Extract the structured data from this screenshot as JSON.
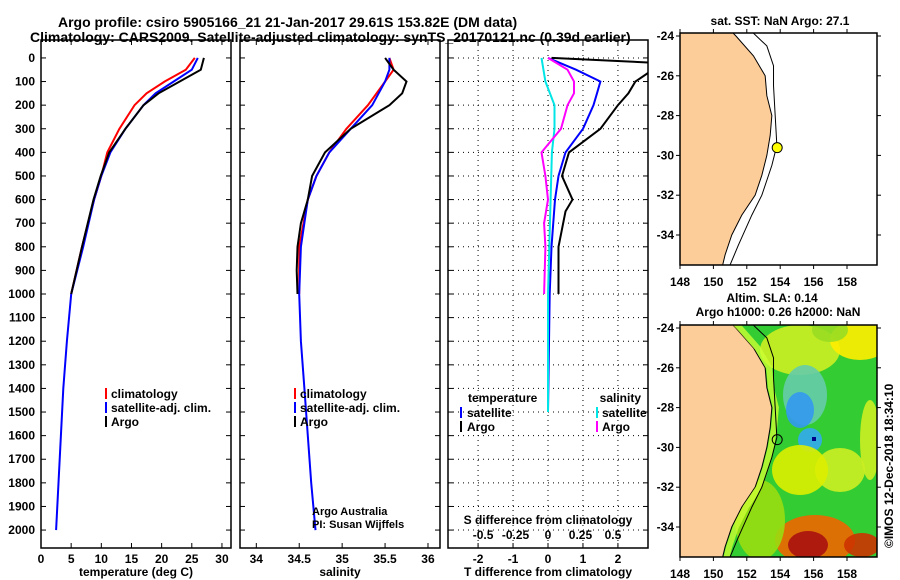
{
  "titles": {
    "line1": "Argo profile: csiro 5905166_21 21-Jan-2017 29.61S 153.82E (DM data)",
    "line2": "Climatology: CARS2009. Satellite-adjusted climatology: synTS_20170121.nc (0.39d earlier)"
  },
  "colors": {
    "clim": "#ff0000",
    "sat": "#0000ff",
    "argo": "#000000",
    "sat_s": "#00e5e5",
    "argo_s": "#ff00ff",
    "land": "#fccc99",
    "argo_dot": "#ffff00"
  },
  "chart_data": [
    {
      "type": "line",
      "name": "temperature",
      "xlabel": "temperature (deg C)",
      "xlim": [
        0,
        31.5
      ],
      "ylim": [
        -76,
        2076
      ],
      "xticks": [
        0,
        5,
        10,
        15,
        20,
        25,
        30
      ],
      "yticks": [
        0,
        100,
        200,
        300,
        400,
        500,
        600,
        700,
        800,
        900,
        1000,
        1100,
        1200,
        1300,
        1400,
        1500,
        1600,
        1700,
        1800,
        1900,
        2000
      ],
      "legend": [
        "climatology",
        "satellite-adj. clim.",
        "Argo"
      ],
      "series": [
        {
          "name": "climatology",
          "color": "#ff0000",
          "depth": [
            0,
            50,
            100,
            150,
            200,
            300,
            400,
            500,
            600,
            800,
            1000
          ],
          "values": [
            25.5,
            24,
            20.5,
            17.5,
            15.5,
            13,
            11,
            10,
            8.8,
            6.8,
            5
          ]
        },
        {
          "name": "satellite-adj. clim.",
          "color": "#0000ff",
          "depth": [
            0,
            50,
            100,
            150,
            200,
            300,
            400,
            500,
            600,
            800,
            1000,
            1200,
            1400,
            1600,
            1800,
            2000
          ],
          "values": [
            26,
            25,
            22,
            19,
            17,
            14,
            11.5,
            10,
            8.8,
            7,
            5,
            4.3,
            3.7,
            3.3,
            2.9,
            2.5
          ]
        },
        {
          "name": "Argo",
          "color": "#000000",
          "depth": [
            0,
            50,
            100,
            150,
            200,
            300,
            400,
            500,
            600,
            800,
            1000
          ],
          "values": [
            27,
            26.5,
            23,
            19.5,
            17,
            14,
            11.3,
            9.9,
            8.7,
            6.8,
            5
          ]
        }
      ]
    },
    {
      "type": "line",
      "name": "salinity",
      "xlabel": "salinity",
      "xlim": [
        33.81,
        36.14
      ],
      "ylim": [
        -76,
        2076
      ],
      "xticks": [
        34,
        34.5,
        35,
        35.5,
        36
      ],
      "legend": [
        "climatology",
        "satellite-adj. clim.",
        "Argo"
      ],
      "annotation": [
        "Argo Australia",
        "PI: Susan Wijffels"
      ],
      "series": [
        {
          "name": "climatology",
          "color": "#ff0000",
          "depth": [
            0,
            50,
            100,
            200,
            300,
            400,
            500,
            600,
            800,
            1000
          ],
          "values": [
            35.55,
            35.6,
            35.5,
            35.3,
            35.05,
            34.85,
            34.7,
            34.6,
            34.5,
            34.5
          ]
        },
        {
          "name": "satellite-adj. clim.",
          "color": "#0000ff",
          "depth": [
            0,
            50,
            100,
            200,
            300,
            400,
            500,
            600,
            800,
            1000,
            1200,
            1400,
            1600,
            1800,
            2000
          ],
          "values": [
            35.55,
            35.55,
            35.5,
            35.35,
            35.1,
            34.85,
            34.7,
            34.6,
            34.52,
            34.5,
            34.52,
            34.56,
            34.6,
            34.64,
            34.69
          ]
        },
        {
          "name": "Argo",
          "color": "#000000",
          "depth": [
            0,
            50,
            100,
            150,
            200,
            300,
            400,
            500,
            600,
            700,
            800,
            900,
            1000
          ],
          "values": [
            35.5,
            35.6,
            35.75,
            35.7,
            35.55,
            35.1,
            34.8,
            34.65,
            34.6,
            34.52,
            34.48,
            34.47,
            34.48
          ]
        }
      ]
    },
    {
      "type": "line",
      "name": "difference",
      "xlabel": "T difference from climatology",
      "xlabel2": "S difference from climatology",
      "xlim": [
        -2.86,
        2.86
      ],
      "xlim2": [
        -0.77,
        0.77
      ],
      "ylim": [
        -76,
        2076
      ],
      "xticks": [
        -2,
        -1,
        0,
        1,
        2
      ],
      "xticks2": [
        "-0.5",
        "-0.25",
        "0",
        "0.25",
        "0.5"
      ],
      "legend_t": {
        "title": "temperature",
        "items": [
          "satellite",
          "Argo"
        ]
      },
      "legend_s": {
        "title": "salinity",
        "items": [
          "satellite",
          "Argo"
        ]
      },
      "series": [
        {
          "name": "T satellite",
          "axis": "T",
          "color": "#0000ff",
          "depth": [
            0,
            50,
            100,
            150,
            200,
            300,
            400,
            500,
            600,
            800,
            1000,
            1500
          ],
          "values": [
            0,
            0.8,
            1.5,
            1.4,
            1.3,
            1.0,
            0.5,
            0.3,
            0.2,
            0.1,
            0.05,
            0
          ]
        },
        {
          "name": "T Argo",
          "axis": "T",
          "color": "#000000",
          "depth": [
            0,
            20,
            50,
            100,
            150,
            200,
            300,
            400,
            500,
            600,
            650,
            800,
            1000
          ],
          "values": [
            0.1,
            3,
            3,
            2.5,
            2.3,
            2,
            1.5,
            0.6,
            0.4,
            0.7,
            0.5,
            0.3,
            0.3
          ]
        },
        {
          "name": "S satellite",
          "axis": "S",
          "color": "#00e5e5",
          "depth": [
            0,
            100,
            200,
            300,
            400,
            600,
            1000,
            1500
          ],
          "values": [
            -0.05,
            -0.02,
            0.05,
            0.05,
            0.03,
            0.02,
            0,
            0
          ]
        },
        {
          "name": "S Argo",
          "axis": "S",
          "color": "#ff00ff",
          "depth": [
            0,
            50,
            100,
            150,
            200,
            300,
            400,
            500,
            600,
            700,
            800,
            1000
          ],
          "values": [
            0,
            0.15,
            0.2,
            0.2,
            0.15,
            0.1,
            -0.05,
            -0.02,
            0,
            -0.03,
            -0.02,
            -0.03
          ]
        }
      ]
    }
  ],
  "maps": {
    "sst_title": "sat. SST: NaN Argo: 27.1",
    "sla_title1": "Altim. SLA: 0.14",
    "sla_title2": "Argo h1000: 0.26 h2000: NaN",
    "lon_ticks": [
      "148",
      "150",
      "152",
      "154",
      "156",
      "158"
    ],
    "lat_ticks": [
      "-24",
      "-26",
      "-28",
      "-30",
      "-32",
      "-34"
    ],
    "argo_position": {
      "lon": 153.82,
      "lat": -29.61
    }
  },
  "credit": "©IMOS 12-Dec-2018 18:34:10"
}
